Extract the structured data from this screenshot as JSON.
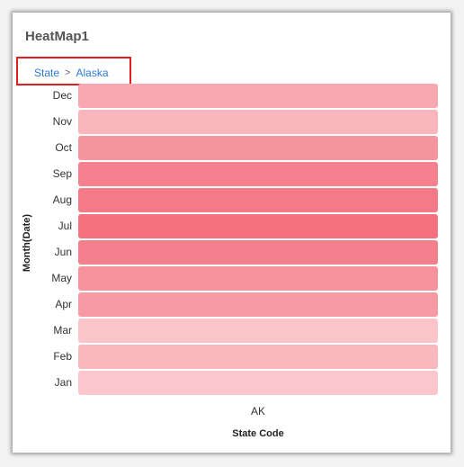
{
  "title": "HeatMap1",
  "breadcrumb": {
    "items": [
      "State",
      "Alaska"
    ],
    "separator": ">"
  },
  "colors": {
    "breadcrumb_link": "#2a7bd6",
    "highlight_border": "#e02020"
  },
  "chart_data": {
    "type": "heatmap",
    "title": "",
    "xlabel": "State Code",
    "ylabel": "Month(Date)",
    "x_categories": [
      "AK"
    ],
    "y_categories": [
      "Dec",
      "Nov",
      "Oct",
      "Sep",
      "Aug",
      "Jul",
      "Jun",
      "May",
      "Apr",
      "Mar",
      "Feb",
      "Jan"
    ],
    "cell_colors": [
      "#f9a7b0",
      "#fab6bd",
      "#f7959f",
      "#f5818e",
      "#f57a87",
      "#f4727f",
      "#f5808d",
      "#f7939d",
      "#f89aa4",
      "#fbc5ca",
      "#fab8be",
      "#fbc7cc"
    ]
  }
}
